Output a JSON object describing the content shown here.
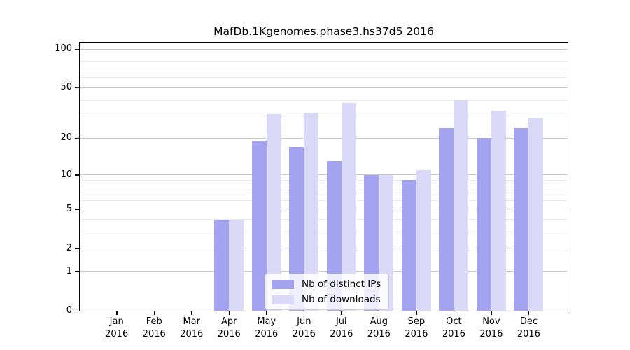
{
  "chart_data": {
    "type": "bar",
    "title": "MafDb.1Kgenomes.phase3.hs37d5 2016",
    "scale": "log1p",
    "categories": [
      "Jan",
      "Feb",
      "Mar",
      "Apr",
      "May",
      "Jun",
      "Jul",
      "Aug",
      "Sep",
      "Oct",
      "Nov",
      "Dec"
    ],
    "category_year": "2016",
    "series": [
      {
        "name": "Nb of distinct IPs",
        "color": "#a3a3f0",
        "values": [
          0,
          0,
          0,
          4,
          19,
          17,
          13,
          10,
          9,
          24,
          20,
          24
        ]
      },
      {
        "name": "Nb of downloads",
        "color": "#dadaf8",
        "values": [
          0,
          0,
          0,
          4,
          31,
          32,
          38,
          10,
          11,
          40,
          33,
          29
        ]
      }
    ],
    "xlabel": "",
    "ylabel": "",
    "ylim": [
      0,
      112
    ],
    "yticks": [
      0,
      1,
      2,
      5,
      10,
      20,
      50,
      100
    ],
    "minor_gridlines": [
      3,
      4,
      6,
      7,
      8,
      9,
      30,
      40,
      60,
      70,
      80,
      90
    ],
    "grid": true,
    "legend_position": "inside-bottom-center",
    "colors": {
      "major_grid": "#c9c9c9",
      "minor_grid": "#eaeaea",
      "frame": "#000000",
      "background": "#ffffff",
      "text": "#000000"
    }
  }
}
